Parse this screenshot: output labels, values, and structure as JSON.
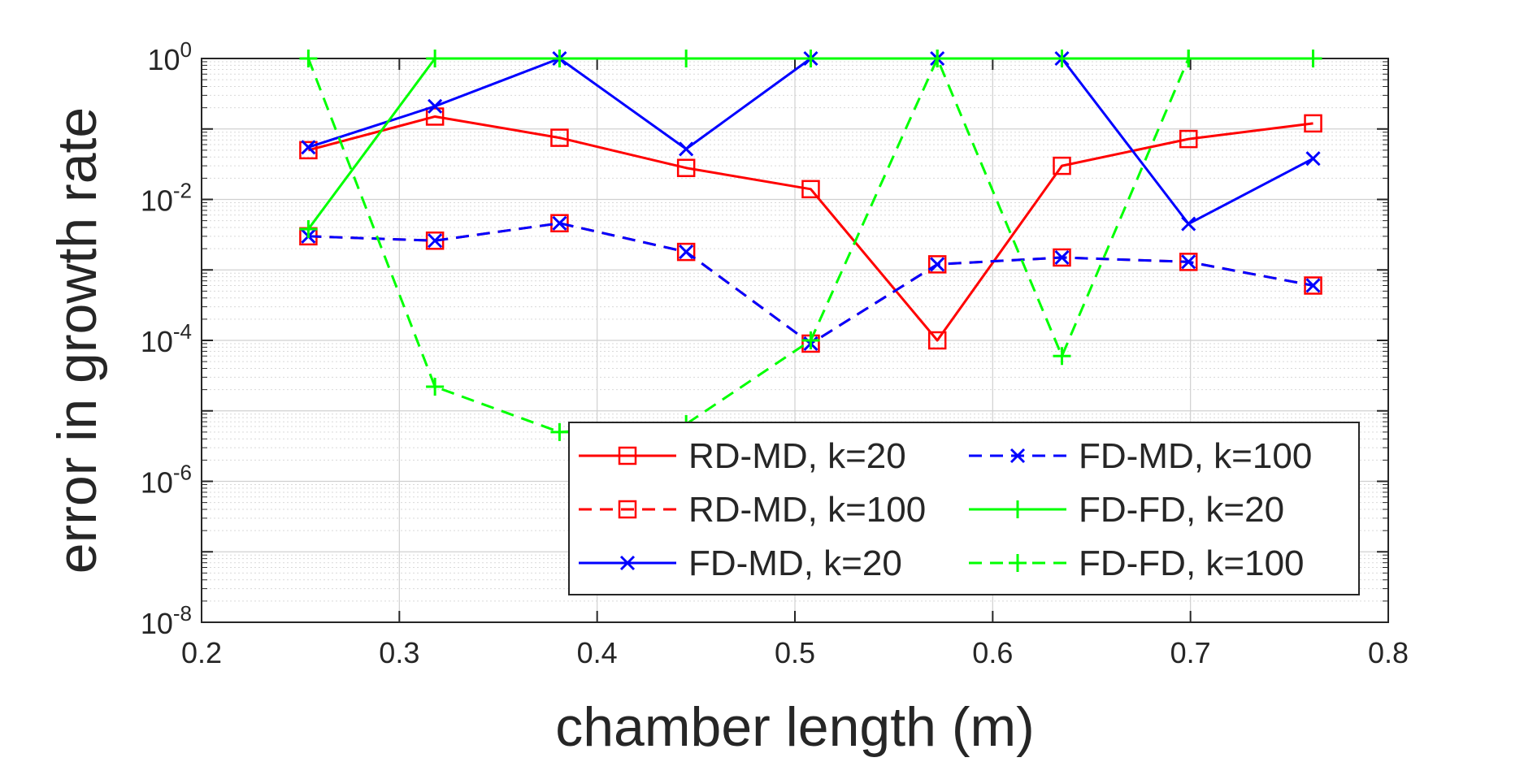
{
  "chart_data": {
    "type": "line",
    "xlabel": "chamber length (m)",
    "ylabel": "error in growth rate",
    "xlim": [
      0.2,
      0.8
    ],
    "ylim": [
      1e-08,
      1
    ],
    "yscale": "log",
    "grid": true,
    "minor_grid": true,
    "legend_position": "bottom-right",
    "legend_columns": 2,
    "x_ticks": [
      0.2,
      0.3,
      0.4,
      0.5,
      0.6,
      0.7,
      0.8
    ],
    "x_tick_labels": [
      "0.2",
      "0.3",
      "0.4",
      "0.5",
      "0.6",
      "0.7",
      "0.8"
    ],
    "y_ticks": [
      {
        "value": 1e-08,
        "base": "10",
        "exp": "-8"
      },
      {
        "value": 1e-06,
        "base": "10",
        "exp": "-6"
      },
      {
        "value": 0.0001,
        "base": "10",
        "exp": "-4"
      },
      {
        "value": 0.01,
        "base": "10",
        "exp": "-2"
      },
      {
        "value": 1,
        "base": "10",
        "exp": "0"
      }
    ],
    "x": [
      0.254,
      0.318,
      0.381,
      0.445,
      0.508,
      0.572,
      0.635,
      0.699,
      0.762
    ],
    "series": [
      {
        "name": "RD-MD, k=20",
        "color": "#ff0000",
        "dash": "solid",
        "marker": "square",
        "values": [
          0.05,
          0.15,
          0.075,
          0.028,
          0.014,
          0.0001,
          0.03,
          0.072,
          0.12
        ]
      },
      {
        "name": "RD-MD, k=100",
        "color": "#ff0000",
        "dash": "dashed",
        "marker": "square",
        "values": [
          0.003,
          0.0026,
          0.0046,
          0.0018,
          9e-05,
          0.0012,
          0.0015,
          0.0013,
          0.0006
        ]
      },
      {
        "name": "FD-MD, k=20",
        "color": "#0000ff",
        "dash": "solid",
        "marker": "x",
        "values": [
          0.055,
          0.21,
          1.0,
          0.052,
          1.0,
          1.0,
          1.0,
          0.0045,
          0.038
        ]
      },
      {
        "name": "FD-MD, k=100",
        "color": "#0000ff",
        "dash": "dashed",
        "marker": "x",
        "values": [
          0.003,
          0.0026,
          0.0046,
          0.0018,
          9e-05,
          0.0012,
          0.0015,
          0.0013,
          0.0006
        ]
      },
      {
        "name": "FD-FD, k=20",
        "color": "#00ff00",
        "dash": "solid",
        "marker": "plus",
        "values": [
          0.0038,
          1.0,
          1.0,
          1.0,
          1.0,
          1.0,
          1.0,
          1.0,
          1.0
        ]
      },
      {
        "name": "FD-FD, k=100",
        "color": "#00ff00",
        "dash": "dashed",
        "marker": "plus",
        "values": [
          1.0,
          2.2e-05,
          5e-06,
          6.5e-06,
          0.0001,
          1.0,
          6e-05,
          1.0,
          null
        ]
      }
    ],
    "legend_order": [
      0,
      3,
      1,
      4,
      2,
      5
    ]
  }
}
